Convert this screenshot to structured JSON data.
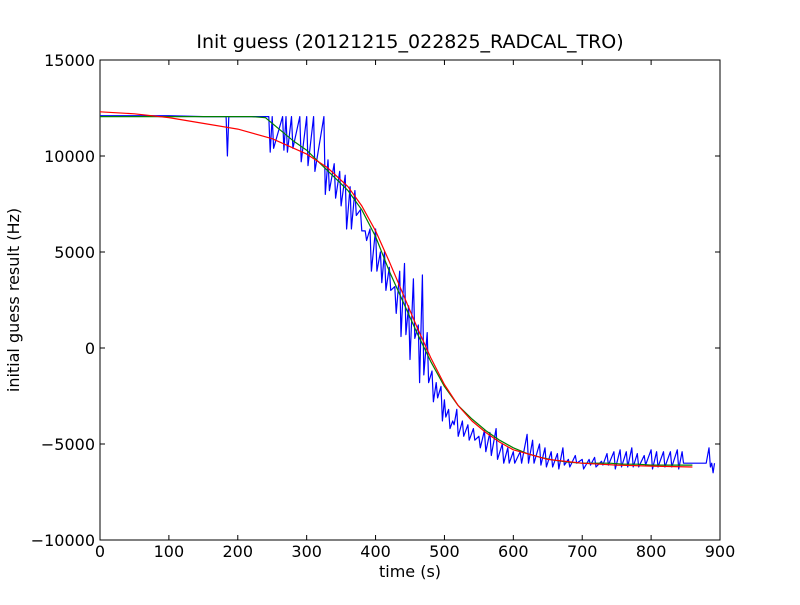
{
  "chart_data": {
    "type": "line",
    "title": "Init guess (20121215_022825_RADCAL_TRO)",
    "xlabel": "time (s)",
    "ylabel": "initial guess result (Hz)",
    "xlim": [
      0,
      900
    ],
    "ylim": [
      -10000,
      15000
    ],
    "xticks": [
      0,
      100,
      200,
      300,
      400,
      500,
      600,
      700,
      800,
      900
    ],
    "yticks": [
      -10000,
      -5000,
      0,
      5000,
      10000,
      15000
    ],
    "xtick_labels": [
      "0",
      "100",
      "200",
      "300",
      "400",
      "500",
      "600",
      "700",
      "800",
      "900"
    ],
    "ytick_labels": [
      "−10000",
      "−5000",
      "0",
      "5000",
      "10000",
      "15000"
    ],
    "grid": false,
    "legend": false,
    "series": [
      {
        "color": "#0000ff",
        "x": [
          0,
          40,
          60,
          100,
          150,
          183,
          185,
          187,
          245,
          247,
          250,
          252,
          265,
          267,
          270,
          272,
          278,
          280,
          290,
          292,
          300,
          302,
          310,
          312,
          325,
          327,
          331,
          333,
          340,
          342,
          348,
          350,
          356,
          358,
          363,
          365,
          370,
          372,
          378,
          380,
          385,
          387,
          392,
          394,
          400,
          402,
          407,
          409,
          413,
          415,
          420,
          422,
          428,
          430,
          435,
          437,
          442,
          444,
          448,
          450,
          455,
          457,
          462,
          464,
          468,
          470,
          475,
          477,
          482,
          484,
          488,
          490,
          495,
          497,
          500,
          502,
          506,
          508,
          512,
          514,
          518,
          520,
          526,
          528,
          534,
          536,
          542,
          544,
          550,
          552,
          558,
          560,
          566,
          568,
          575,
          577,
          584,
          586,
          592,
          594,
          600,
          602,
          610,
          612,
          620,
          622,
          628,
          630,
          638,
          640,
          646,
          648,
          655,
          657,
          664,
          666,
          672,
          674,
          680,
          682,
          690,
          692,
          700,
          702,
          710,
          712,
          718,
          720,
          728,
          730,
          736,
          738,
          746,
          748,
          755,
          757,
          764,
          766,
          772,
          774,
          780,
          782,
          790,
          792,
          800,
          802,
          808,
          810,
          818,
          820,
          828,
          830,
          838,
          840,
          845,
          847,
          860,
          880,
          884,
          886,
          888,
          890,
          892
        ],
        "values": [
          12100,
          12100,
          12100,
          12100,
          12050,
          12050,
          10000,
          12050,
          12050,
          10200,
          12050,
          10400,
          12050,
          10300,
          12050,
          10200,
          12050,
          10400,
          12050,
          9700,
          12050,
          9500,
          12050,
          9200,
          12050,
          8000,
          9800,
          8200,
          9600,
          7800,
          9200,
          7400,
          9000,
          6200,
          8400,
          6200,
          8200,
          6900,
          7200,
          6100,
          6100,
          5600,
          6200,
          4000,
          6200,
          4000,
          5000,
          3400,
          5000,
          3000,
          4200,
          3000,
          3200,
          1800,
          4000,
          600,
          4400,
          700,
          2200,
          -600,
          3600,
          500,
          1200,
          -1800,
          3800,
          -1400,
          800,
          -1800,
          -1200,
          -2800,
          -1800,
          -2600,
          -2000,
          -3800,
          -2700,
          -3600,
          -3200,
          -4200,
          -3800,
          -4000,
          -3200,
          -4600,
          -3800,
          -4600,
          -4000,
          -4800,
          -4200,
          -4800,
          -4600,
          -5200,
          -4300,
          -5400,
          -4400,
          -5600,
          -4200,
          -5800,
          -5000,
          -6000,
          -5200,
          -6000,
          -5400,
          -6000,
          -5400,
          -6000,
          -4500,
          -6000,
          -4800,
          -6000,
          -5000,
          -6100,
          -5200,
          -6200,
          -5400,
          -6200,
          -5500,
          -6300,
          -5200,
          -6100,
          -5800,
          -6200,
          -5600,
          -6000,
          -5800,
          -6300,
          -5800,
          -6100,
          -5700,
          -6200,
          -5900,
          -6100,
          -5500,
          -6100,
          -5400,
          -6300,
          -5300,
          -6200,
          -5400,
          -6200,
          -5200,
          -6200,
          -5500,
          -6200,
          -5600,
          -6100,
          -5300,
          -6300,
          -5400,
          -6200,
          -5400,
          -6200,
          -5400,
          -6200,
          -5300,
          -6300,
          -5400,
          -6000,
          -6000,
          -6000,
          -5200,
          -6200,
          -6000,
          -6500,
          -6000
        ]
      },
      {
        "color": "#007f00",
        "x": [
          0,
          50,
          100,
          150,
          200,
          220,
          240,
          260,
          280,
          300,
          320,
          340,
          360,
          380,
          400,
          420,
          440,
          460,
          480,
          500,
          520,
          540,
          560,
          580,
          600,
          620,
          640,
          660,
          680,
          700,
          720,
          740,
          760,
          780,
          800,
          820,
          840,
          860
        ],
        "values": [
          12050,
          12050,
          12050,
          12050,
          12050,
          12050,
          12000,
          11400,
          10800,
          10300,
          9600,
          8900,
          8200,
          7200,
          5800,
          4000,
          2400,
          800,
          -700,
          -2000,
          -3000,
          -3700,
          -4300,
          -4800,
          -5200,
          -5500,
          -5700,
          -5850,
          -5950,
          -6000,
          -6000,
          -6000,
          -6050,
          -6050,
          -6100,
          -6100,
          -6100,
          -6100
        ]
      },
      {
        "color": "#ff0000",
        "x": [
          0,
          50,
          100,
          150,
          200,
          250,
          300,
          330,
          360,
          380,
          400,
          420,
          440,
          460,
          480,
          500,
          520,
          540,
          560,
          580,
          600,
          650,
          700,
          750,
          800,
          860
        ],
        "values": [
          12300,
          12200,
          12000,
          11700,
          11400,
          10900,
          10100,
          9400,
          8400,
          7400,
          6100,
          4500,
          2800,
          1100,
          -500,
          -1900,
          -3000,
          -3800,
          -4400,
          -4900,
          -5300,
          -5800,
          -6000,
          -6100,
          -6150,
          -6200
        ]
      }
    ]
  }
}
